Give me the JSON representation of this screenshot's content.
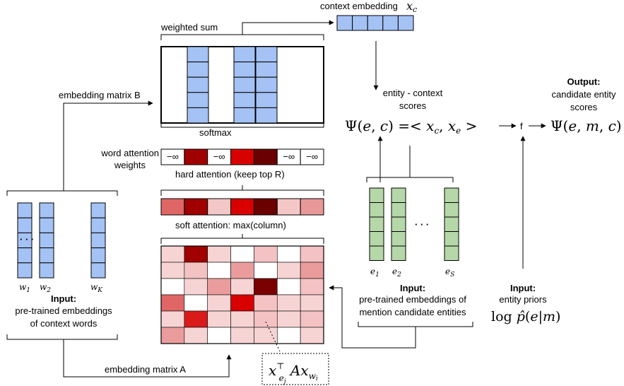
{
  "labels": {
    "context_embedding": "context embedding",
    "context_embedding_symbol": "x",
    "context_embedding_sub": "c",
    "weighted_sum": "weighted sum",
    "embedding_matrix_b": "embedding matrix B",
    "softmax": "softmax",
    "word_attention_weights_1": "word attention",
    "word_attention_weights_2": "weights",
    "hard_attention": "hard attention (keep top R)",
    "soft_attention": "soft attention: max(column)",
    "embedding_matrix_a": "embedding matrix A",
    "entity_context_scores_1": "entity - context",
    "entity_context_scores_2": "scores",
    "output_title": "Output:",
    "output_line1": "candidate entity",
    "output_line2": "scores",
    "input_words_title": "Input:",
    "input_words_line1": "pre-trained embeddings",
    "input_words_line2": "of context words",
    "input_entities_title": "Input:",
    "input_entities_line1": "pre-trained embeddings of",
    "input_entities_line2": "mention candidate entities",
    "input_priors_title": "Input:",
    "input_priors_line1": "entity priors",
    "f_label": "f",
    "ellipsis": "· · ·"
  },
  "formulas": {
    "psi_ec": "Ψ(e, c) =< x_c , x_e >",
    "psi_emc": "Ψ(e, m, c)",
    "log_prior": "log p̂(e|m)",
    "bilinear": "x_{e_j}^⊤ A x_{w_i}"
  },
  "word_vectors": [
    "w1",
    "w2",
    "wK"
  ],
  "entity_vectors": [
    "e1",
    "e2",
    "eS"
  ],
  "word_attention_row": [
    {
      "label": "−∞",
      "color": "#ffffff"
    },
    {
      "label": "",
      "color": "#a00000"
    },
    {
      "label": "−∞",
      "color": "#ffffff"
    },
    {
      "label": "",
      "color": "#d90000"
    },
    {
      "label": "",
      "color": "#6b0000"
    },
    {
      "label": "−∞",
      "color": "#ffffff"
    },
    {
      "label": "−∞",
      "color": "#ffffff"
    }
  ],
  "soft_attention_row": [
    "#e06666",
    "#a00000",
    "#f4c7c7",
    "#d90000",
    "#6b0000",
    "#f4c7c7",
    "#e89898"
  ],
  "score_matrix": [
    [
      "#f7d4d4",
      "#a00000",
      "#f7d4d4",
      "#ffffff",
      "#f4c2c2",
      "#ffffff",
      "#f4c2c2"
    ],
    [
      "#f7d4d4",
      "#f4c2c2",
      "#ffffff",
      "#ea9c9c",
      "#ffffff",
      "#f7d4d4",
      "#ea9c9c"
    ],
    [
      "#ffffff",
      "#f7d4d4",
      "#ea9c9c",
      "#f7d4d4",
      "#7a0000",
      "#ffffff",
      "#f4c2c2"
    ],
    [
      "#e06666",
      "#ffffff",
      "#f7d4d4",
      "#d90000",
      "#f4c2c2",
      "#f7d4d4",
      "#f7d4d4"
    ],
    [
      "#f7d4d4",
      "#d91a1a",
      "#f7d4d4",
      "#f7d4d4",
      "#f4c2c2",
      "#f7d4d4",
      "#f4c2c2"
    ],
    [
      "#ea9c9c",
      "#f7d4d4",
      "#ffffff",
      "#f7d4d4",
      "#f7d4d4",
      "#ffffff",
      "#f7d4d4"
    ]
  ],
  "colors": {
    "word_embedding": "#a4c2f4",
    "entity_embedding": "#b6d7a8",
    "context_embedding": "#a4c2f4"
  }
}
